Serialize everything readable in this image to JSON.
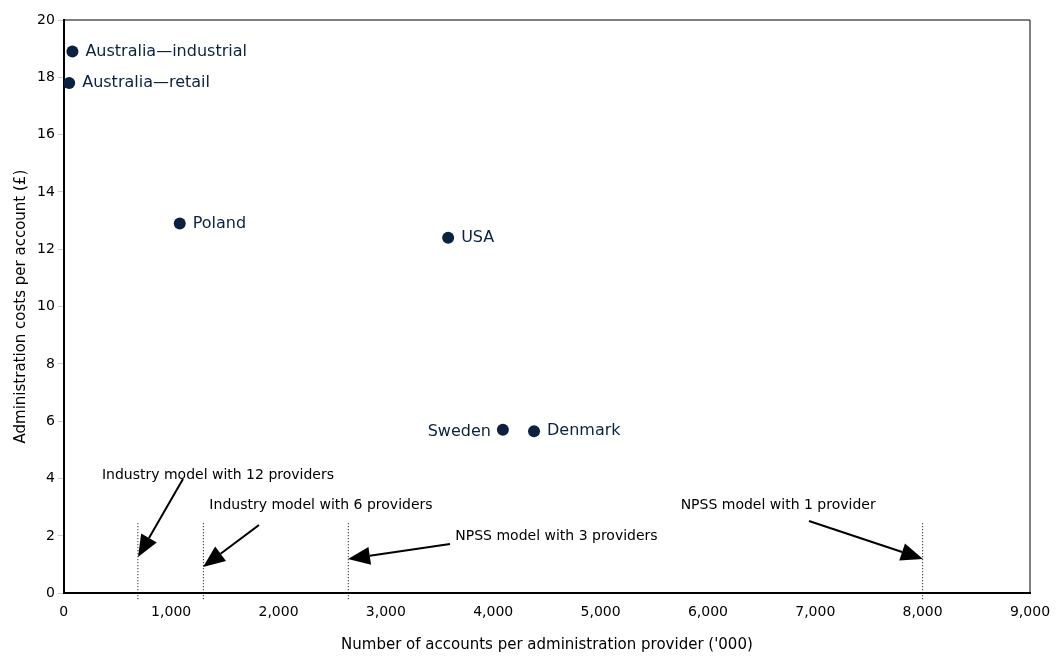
{
  "chart_data": {
    "type": "scatter",
    "xlabel": "Number of accounts per administration provider ('000)",
    "ylabel": "Administration costs per account (£)",
    "series": [
      {
        "name": "Australia—industrial",
        "color": "#0a2240",
        "x": [
          80
        ],
        "values": [
          18.9
        ]
      },
      {
        "name": "Australia—retail",
        "color": "#0a2240",
        "x": [
          50
        ],
        "values": [
          17.8
        ]
      },
      {
        "name": "Poland",
        "color": "#0a2240",
        "x": [
          1080
        ],
        "values": [
          12.9
        ]
      },
      {
        "name": "USA",
        "color": "#0a2240",
        "x": [
          3580
        ],
        "values": [
          12.4
        ]
      },
      {
        "name": "Sweden",
        "color": "#0a2240",
        "x": [
          4090
        ],
        "values": [
          5.7
        ]
      },
      {
        "name": "Denmark",
        "color": "#0a2240",
        "x": [
          4380
        ],
        "values": [
          5.65
        ]
      }
    ],
    "marker": "circle",
    "xlim": [
      0,
      9000
    ],
    "ylim": [
      0,
      20
    ],
    "xticks": [
      0,
      {
        "value": 1000,
        "label": "1,000"
      },
      {
        "value": 2000,
        "label": "2,000"
      },
      {
        "value": 3000,
        "label": "3,000"
      },
      {
        "value": 4000,
        "label": "4,000"
      },
      {
        "value": 5000,
        "label": "5,000"
      },
      {
        "value": 6000,
        "label": "6,000"
      },
      {
        "value": 7000,
        "label": "7,000"
      },
      {
        "value": 8000,
        "label": "8,000"
      },
      {
        "value": 9000,
        "label": "9,000"
      }
    ],
    "yticks": [
      0,
      2,
      4,
      6,
      8,
      10,
      12,
      14,
      16,
      18,
      20
    ],
    "grid": false,
    "legend": false,
    "ref_lines": [
      {
        "axis": "x",
        "value": 690,
        "line_style": "dotted",
        "color": "#000000"
      },
      {
        "axis": "x",
        "value": 1300,
        "line_style": "dotted",
        "color": "#000000"
      },
      {
        "axis": "x",
        "value": 2650,
        "line_style": "dotted",
        "color": "#000000"
      },
      {
        "axis": "x",
        "value": 8000,
        "line_style": "dotted",
        "color": "#000000"
      }
    ],
    "annotations": [
      "Industry model with 12 providers",
      "Industry model with 6 providers",
      "NPSS model with 3 providers",
      "NPSS model with 1 provider"
    ]
  }
}
